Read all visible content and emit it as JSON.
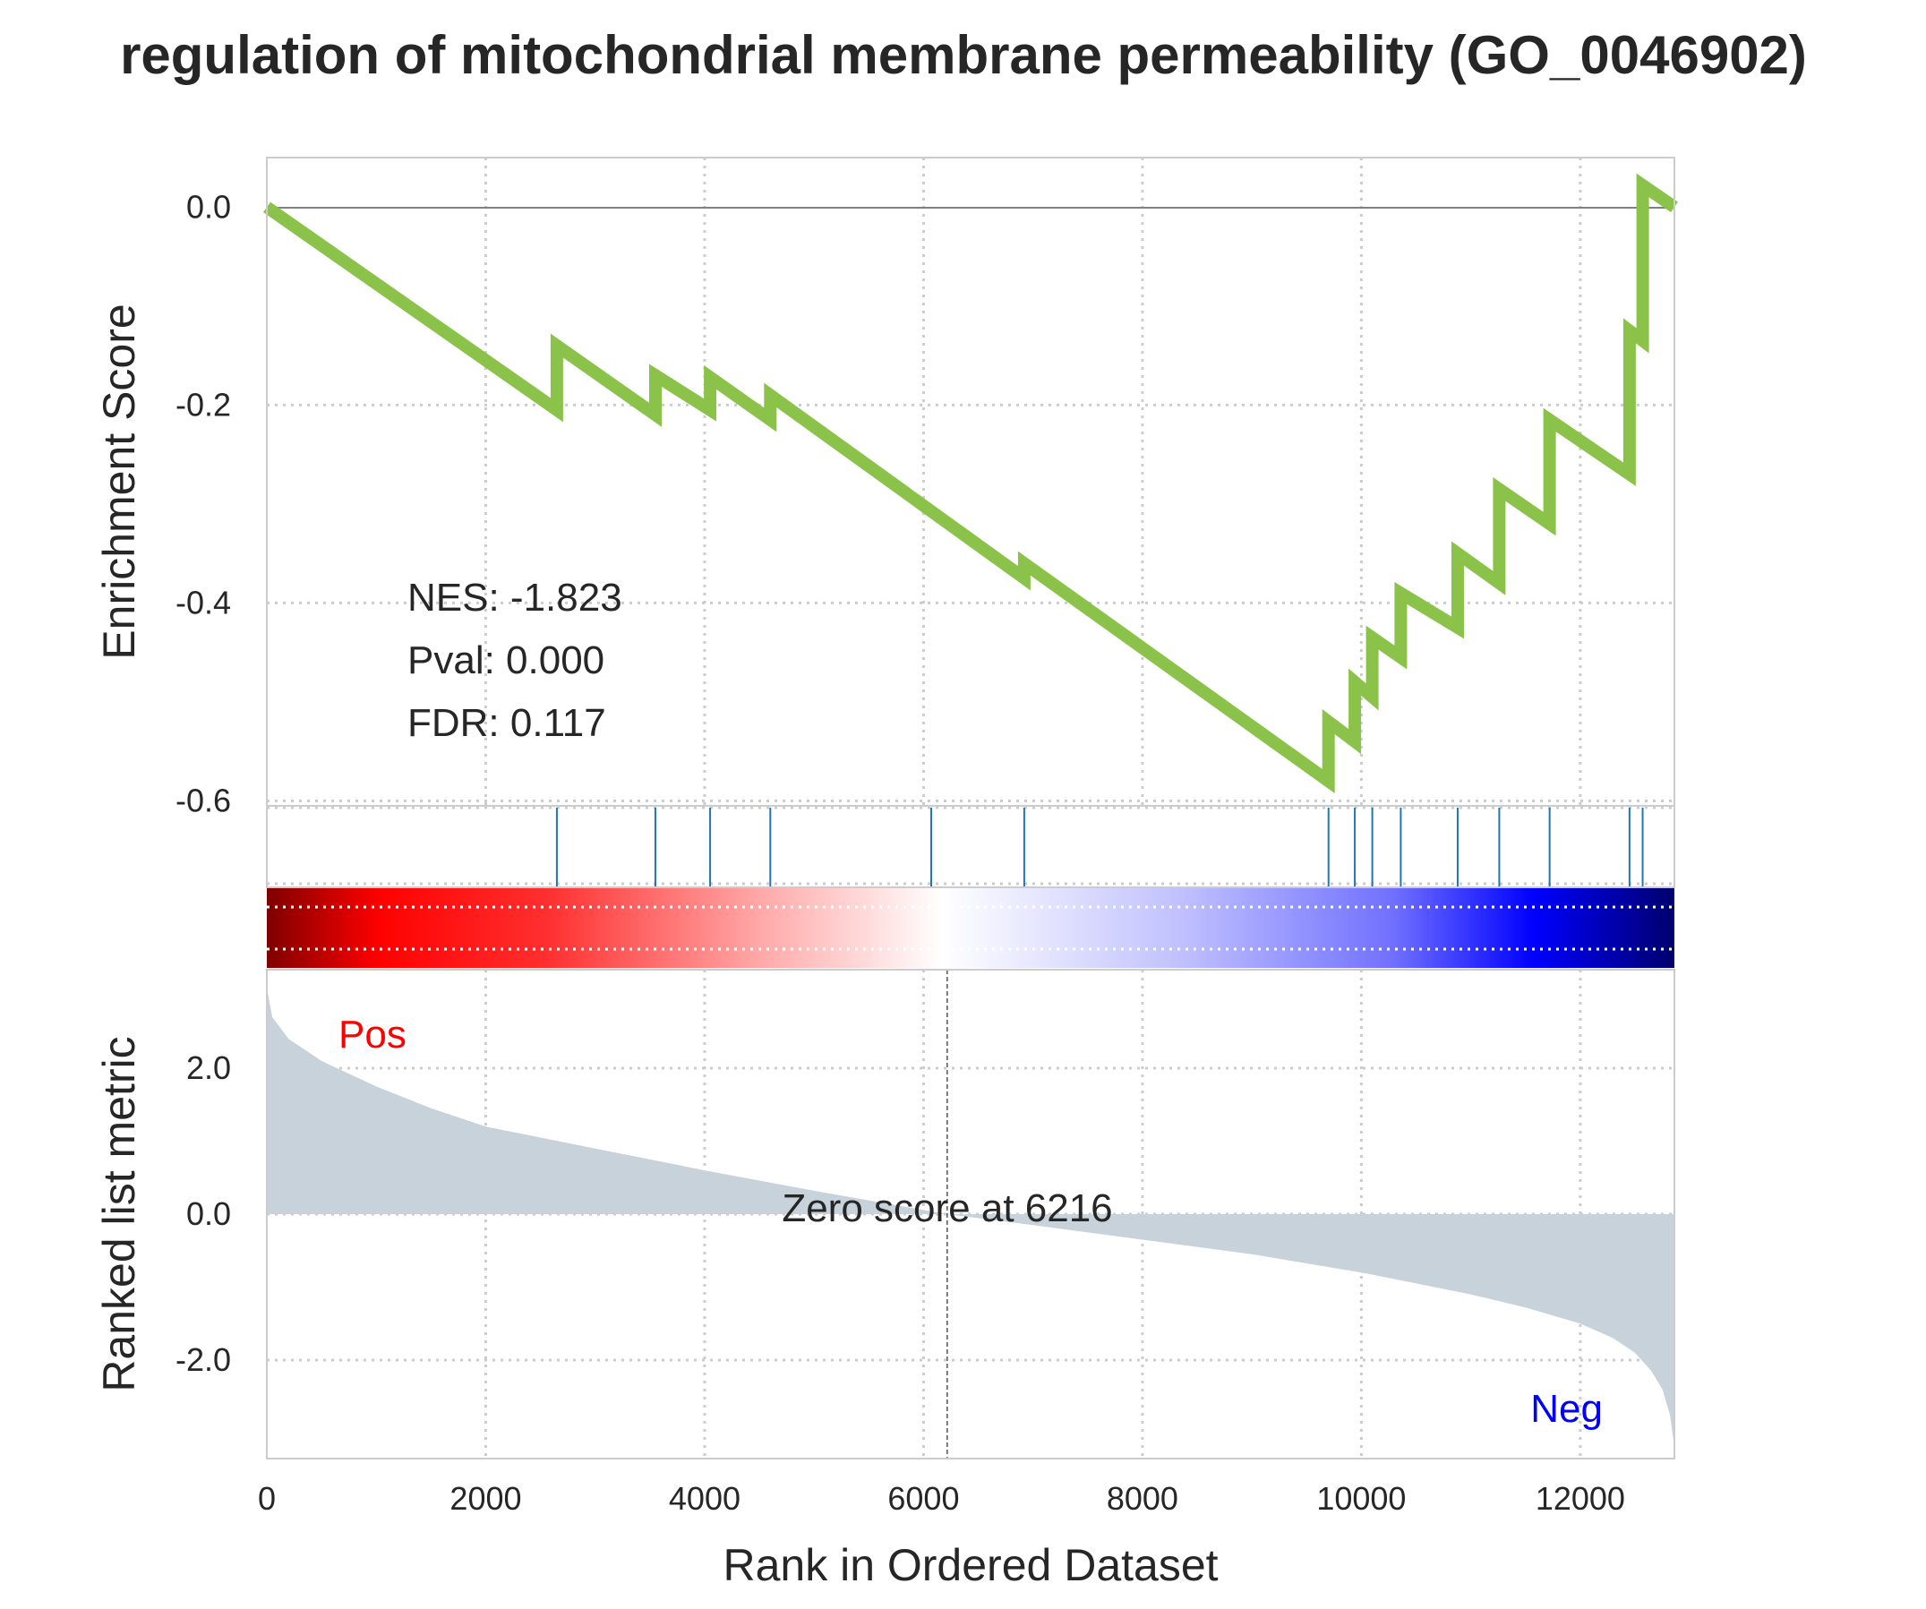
{
  "title": "regulation of mitochondrial membrane permeability (GO_0046902)",
  "stats": {
    "nes": "NES: -1.823",
    "pval": "Pval: 0.000",
    "fdr": "FDR: 0.117"
  },
  "colors": {
    "es_line": "#8bc34a",
    "hit_line": "#1f77b4",
    "metric_fill": "#c8d2da",
    "pos_label": "#ff0000",
    "neg_label": "#0000ff"
  },
  "chart_data": [
    {
      "type": "line",
      "title": "regulation of mitochondrial membrane permeability (GO_0046902)",
      "ylabel": "Enrichment Score",
      "xlim": [
        0,
        12860
      ],
      "ylim": [
        -0.605,
        0.05
      ],
      "yticks": [
        0.0,
        -0.2,
        -0.4,
        -0.6
      ],
      "ytick_labels": [
        "0.0",
        "-0.2",
        "-0.4",
        "-0.6"
      ],
      "grid": true,
      "series": [
        {
          "x": [
            0,
            2650,
            2650,
            3550,
            3550,
            4050,
            4050,
            4600,
            4600,
            6920,
            6920,
            9700,
            9700,
            9940,
            9940,
            10100,
            10100,
            10360,
            10360,
            10880,
            10880,
            11260,
            11260,
            11720,
            11720,
            12450,
            12450,
            12570,
            12570,
            12860
          ],
          "y": [
            0.0,
            -0.205,
            -0.14,
            -0.21,
            -0.17,
            -0.205,
            -0.172,
            -0.215,
            -0.19,
            -0.375,
            -0.36,
            -0.58,
            -0.52,
            -0.54,
            -0.48,
            -0.495,
            -0.435,
            -0.455,
            -0.39,
            -0.425,
            -0.35,
            -0.38,
            -0.285,
            -0.32,
            -0.215,
            -0.27,
            -0.125,
            -0.135,
            0.022,
            0.0
          ]
        }
      ],
      "hits": [
        2650,
        3550,
        4050,
        4600,
        6070,
        6920,
        9700,
        9940,
        10100,
        10360,
        10880,
        11260,
        11720,
        12450,
        12570
      ],
      "annotations": [
        "NES: -1.823",
        "Pval: 0.000",
        "FDR: 0.117"
      ]
    },
    {
      "type": "area",
      "xlabel": "Rank in Ordered Dataset",
      "ylabel": "Ranked list metric",
      "xlim": [
        0,
        12860
      ],
      "ylim": [
        -3.35,
        3.35
      ],
      "xticks": [
        0,
        2000,
        4000,
        6000,
        8000,
        10000,
        12000
      ],
      "xtick_labels": [
        "0",
        "2000",
        "4000",
        "6000",
        "8000",
        "10000",
        "12000"
      ],
      "yticks": [
        2.0,
        0.0,
        -2.0
      ],
      "ytick_labels": [
        "2.0",
        "0.0",
        "-2.0"
      ],
      "grid": true,
      "series": [
        {
          "x": [
            0,
            50,
            200,
            500,
            1000,
            1500,
            2000,
            3000,
            4000,
            5000,
            6216,
            7000,
            8000,
            9000,
            10000,
            10500,
            11000,
            11500,
            12000,
            12300,
            12500,
            12650,
            12750,
            12820,
            12860
          ],
          "y": [
            3.1,
            2.7,
            2.4,
            2.1,
            1.75,
            1.45,
            1.2,
            0.9,
            0.6,
            0.32,
            0.0,
            -0.15,
            -0.35,
            -0.55,
            -0.8,
            -0.95,
            -1.1,
            -1.28,
            -1.5,
            -1.7,
            -1.9,
            -2.15,
            -2.4,
            -2.75,
            -3.2
          ]
        }
      ],
      "zero_cross": 6216,
      "annotations": {
        "zero": "Zero score at 6216",
        "pos": "Pos",
        "neg": "Neg"
      }
    }
  ]
}
